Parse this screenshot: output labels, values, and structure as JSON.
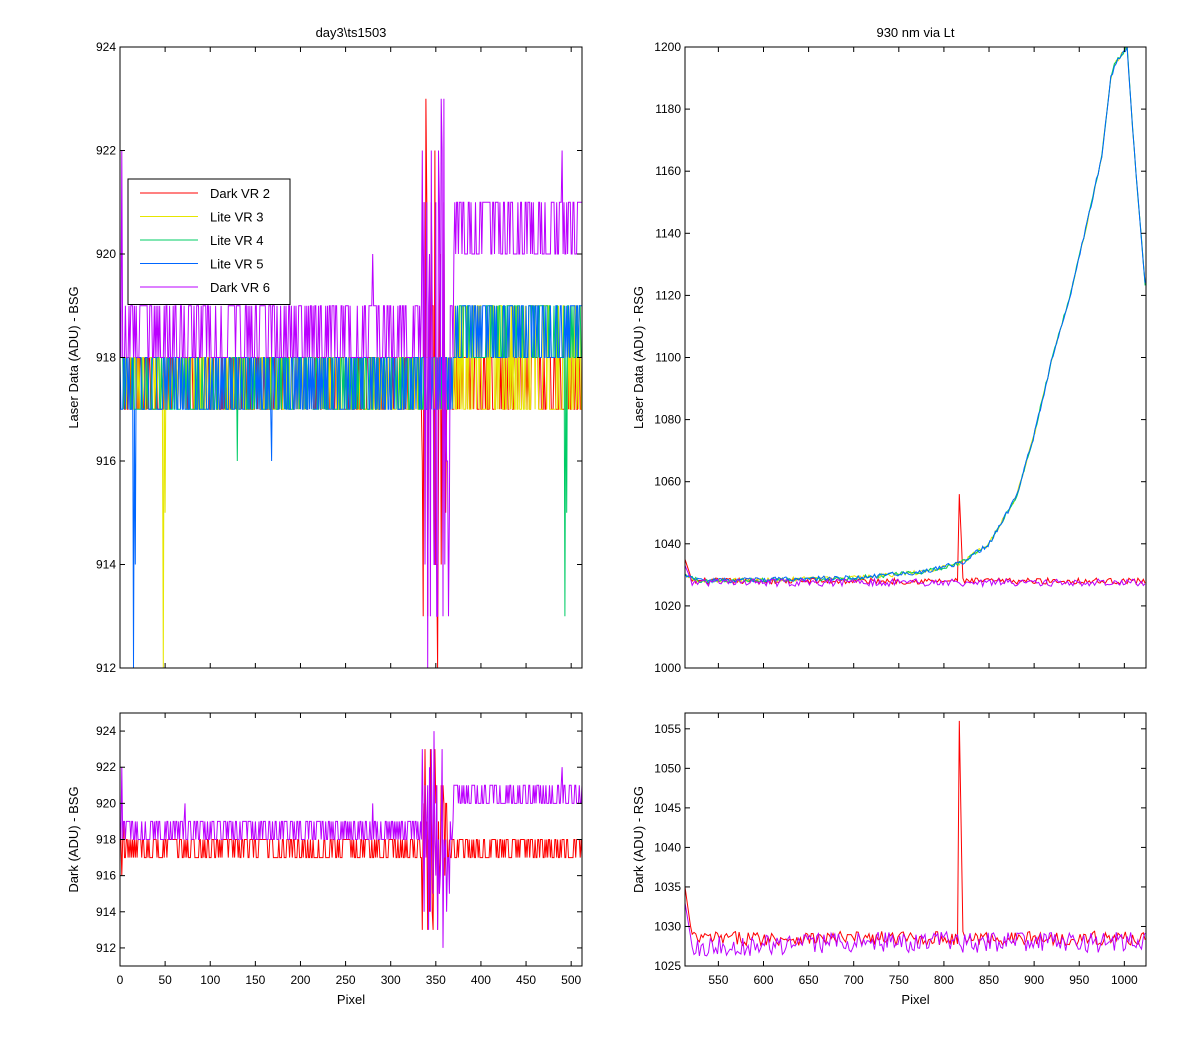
{
  "figure": {
    "background": "#ffffff",
    "series_colors": {
      "Dark VR 2": "#ff0000",
      "Lite VR 3": "#e6e600",
      "Lite VR 4": "#00cc66",
      "Lite VR 5": "#0066ff",
      "Dark VR 6": "#bb00ff",
      "overlap": "#ff00aa"
    }
  },
  "chart_data": [
    {
      "id": "top-left",
      "type": "line",
      "title": "day3\\ts1503",
      "xlabel": "",
      "ylabel": "Laser Data (ADU) - BSG",
      "xlim": [
        0,
        512
      ],
      "ylim": [
        912,
        924
      ],
      "xticks": [
        0,
        50,
        100,
        150,
        200,
        250,
        300,
        350,
        400,
        450,
        500
      ],
      "show_xticklabels": false,
      "yticks": [
        912,
        914,
        916,
        918,
        920,
        922,
        924
      ],
      "legend": {
        "placement": "upper-left",
        "entries": [
          "Dark VR 2",
          "Lite VR 3",
          "Lite VR 4",
          "Lite VR 5",
          "Dark VR 6"
        ]
      },
      "series": [
        {
          "name": "Dark VR 2",
          "model": {
            "x_start": 0,
            "x_end": 512,
            "step": 1,
            "levels": [
              917,
              918
            ],
            "burst": [
              335,
              362
            ],
            "burst_range": [
              912,
              923
            ]
          }
        },
        {
          "name": "Lite VR 3",
          "model": {
            "x_start": 0,
            "x_end": 512,
            "step": 1,
            "levels": [
              917,
              918
            ],
            "late_levels": [
              917,
              919
            ],
            "late_from": 370,
            "spikes": [
              [
                48,
                912
              ],
              [
                50,
                915
              ]
            ]
          }
        },
        {
          "name": "Lite VR 4",
          "model": {
            "x_start": 0,
            "x_end": 512,
            "step": 1,
            "levels": [
              917,
              918
            ],
            "late_levels": [
              918,
              919
            ],
            "late_from": 370,
            "spikes": [
              [
                130,
                916
              ],
              [
                493,
                913
              ],
              [
                495,
                915
              ]
            ]
          }
        },
        {
          "name": "Lite VR 5",
          "model": {
            "x_start": 0,
            "x_end": 512,
            "step": 1,
            "levels": [
              917,
              918
            ],
            "late_levels": [
              918,
              919
            ],
            "late_from": 370,
            "spikes": [
              [
                15,
                912
              ],
              [
                17,
                914
              ],
              [
                168,
                916
              ]
            ]
          }
        },
        {
          "name": "Dark VR 6",
          "model": {
            "x_start": 0,
            "x_end": 512,
            "step": 1,
            "levels": [
              918,
              919
            ],
            "late_levels": [
              920,
              921
            ],
            "late_from": 370,
            "burst": [
              335,
              365
            ],
            "burst_range": [
              912,
              924
            ],
            "spikes": [
              [
                2,
                922
              ],
              [
                280,
                920
              ],
              [
                490,
                922
              ]
            ]
          }
        }
      ]
    },
    {
      "id": "top-right",
      "type": "line",
      "title": "930 nm via Lt",
      "xlabel": "",
      "ylabel": "Laser Data (ADU) - RSG",
      "xlim": [
        513,
        1024
      ],
      "ylim": [
        1000,
        1200
      ],
      "xticks": [
        550,
        600,
        650,
        700,
        750,
        800,
        850,
        900,
        950,
        1000
      ],
      "show_xticklabels": false,
      "yticks": [
        1000,
        1020,
        1040,
        1060,
        1080,
        1100,
        1120,
        1140,
        1160,
        1180,
        1200
      ],
      "series": [
        {
          "name": "Dark VR 2",
          "model": {
            "x_start": 513,
            "x_end": 1024,
            "step": 2,
            "base": 1028,
            "noise": 1.0,
            "start_value": 1035,
            "spikes": [
              [
                817,
                1056
              ],
              [
                819,
                1043
              ]
            ]
          }
        },
        {
          "name": "Lite VR 3",
          "model": {
            "x_start": 513,
            "x_end": 1024,
            "step": 2,
            "curve": [
              [
                513,
                1030
              ],
              [
                530,
                1028
              ],
              [
                700,
                1029
              ],
              [
                780,
                1031
              ],
              [
                820,
                1034
              ],
              [
                850,
                1040
              ],
              [
                880,
                1055
              ],
              [
                900,
                1075
              ],
              [
                920,
                1100
              ],
              [
                940,
                1120
              ],
              [
                960,
                1145
              ],
              [
                975,
                1165
              ],
              [
                985,
                1190
              ],
              [
                990,
                1195
              ],
              [
                1003,
                1200
              ],
              [
                1010,
                1170
              ],
              [
                1024,
                1120
              ]
            ],
            "noise": 0.7
          }
        },
        {
          "name": "Lite VR 4",
          "model": {
            "x_start": 513,
            "x_end": 1024,
            "step": 2,
            "curve": [
              [
                513,
                1030
              ],
              [
                530,
                1028
              ],
              [
                700,
                1029
              ],
              [
                780,
                1031
              ],
              [
                820,
                1034
              ],
              [
                850,
                1040
              ],
              [
                880,
                1055
              ],
              [
                900,
                1075
              ],
              [
                920,
                1100
              ],
              [
                940,
                1120
              ],
              [
                960,
                1145
              ],
              [
                975,
                1165
              ],
              [
                985,
                1190
              ],
              [
                990,
                1195
              ],
              [
                1003,
                1200
              ],
              [
                1010,
                1170
              ],
              [
                1024,
                1120
              ]
            ],
            "noise": 0.7
          }
        },
        {
          "name": "Lite VR 5",
          "model": {
            "x_start": 513,
            "x_end": 1024,
            "step": 2,
            "curve": [
              [
                513,
                1030
              ],
              [
                530,
                1028
              ],
              [
                700,
                1029
              ],
              [
                780,
                1031
              ],
              [
                820,
                1034
              ],
              [
                850,
                1040
              ],
              [
                880,
                1055
              ],
              [
                900,
                1075
              ],
              [
                920,
                1100
              ],
              [
                940,
                1120
              ],
              [
                960,
                1145
              ],
              [
                975,
                1165
              ],
              [
                985,
                1190
              ],
              [
                990,
                1195
              ],
              [
                1003,
                1200
              ],
              [
                1010,
                1170
              ],
              [
                1024,
                1120
              ]
            ],
            "noise": 0.8
          }
        },
        {
          "name": "Dark VR 6",
          "model": {
            "x_start": 513,
            "x_end": 1024,
            "step": 2,
            "base": 1027.5,
            "noise": 1.2,
            "dip": [
              [
                530,
                1027
              ],
              [
                650,
                1027
              ],
              [
                700,
                1028
              ]
            ],
            "start_value": 1033
          }
        }
      ]
    },
    {
      "id": "bottom-left",
      "type": "line",
      "title": "",
      "xlabel": "Pixel",
      "ylabel": "Dark (ADU) - BSG",
      "xlim": [
        0,
        512
      ],
      "ylim": [
        911,
        925
      ],
      "xticks": [
        0,
        50,
        100,
        150,
        200,
        250,
        300,
        350,
        400,
        450,
        500
      ],
      "show_xticklabels": true,
      "yticks": [
        912,
        914,
        916,
        918,
        920,
        922,
        924
      ],
      "series": [
        {
          "name": "Dark VR 2",
          "model": {
            "x_start": 0,
            "x_end": 512,
            "step": 1,
            "levels": [
              917,
              918
            ],
            "late_levels": [
              917,
              918
            ],
            "late_from": 370,
            "burst": [
              335,
              362
            ],
            "burst_range": [
              913,
              923
            ],
            "spikes": [
              [
                2,
                916
              ],
              [
                4,
                919
              ]
            ]
          }
        },
        {
          "name": "Dark VR 6",
          "model": {
            "x_start": 0,
            "x_end": 512,
            "step": 1,
            "levels": [
              918,
              919
            ],
            "late_levels": [
              920,
              921
            ],
            "late_from": 370,
            "burst": [
              335,
              365
            ],
            "burst_range": [
              912,
              924
            ],
            "spikes": [
              [
                2,
                922
              ],
              [
                72,
                920
              ],
              [
                280,
                920
              ],
              [
                490,
                922
              ]
            ]
          }
        }
      ]
    },
    {
      "id": "bottom-right",
      "type": "line",
      "title": "",
      "xlabel": "Pixel",
      "ylabel": "Dark (ADU) - RSG",
      "xlim": [
        513,
        1024
      ],
      "ylim": [
        1025,
        1057
      ],
      "xticks": [
        550,
        600,
        650,
        700,
        750,
        800,
        850,
        900,
        950,
        1000
      ],
      "show_xticklabels": true,
      "yticks": [
        1025,
        1030,
        1035,
        1040,
        1045,
        1050,
        1055
      ],
      "series": [
        {
          "name": "Dark VR 2",
          "model": {
            "x_start": 513,
            "x_end": 1024,
            "step": 2,
            "base": 1028.5,
            "noise": 0.9,
            "start_value": 1035,
            "spikes": [
              [
                817,
                1056
              ],
              [
                819,
                1043
              ]
            ]
          }
        },
        {
          "name": "Dark VR 6",
          "model": {
            "x_start": 513,
            "x_end": 1024,
            "step": 2,
            "base": 1028,
            "noise": 1.3,
            "dip": [
              [
                530,
                1027
              ],
              [
                650,
                1027.2
              ],
              [
                700,
                1028
              ]
            ],
            "start_value": 1033
          }
        }
      ]
    }
  ]
}
